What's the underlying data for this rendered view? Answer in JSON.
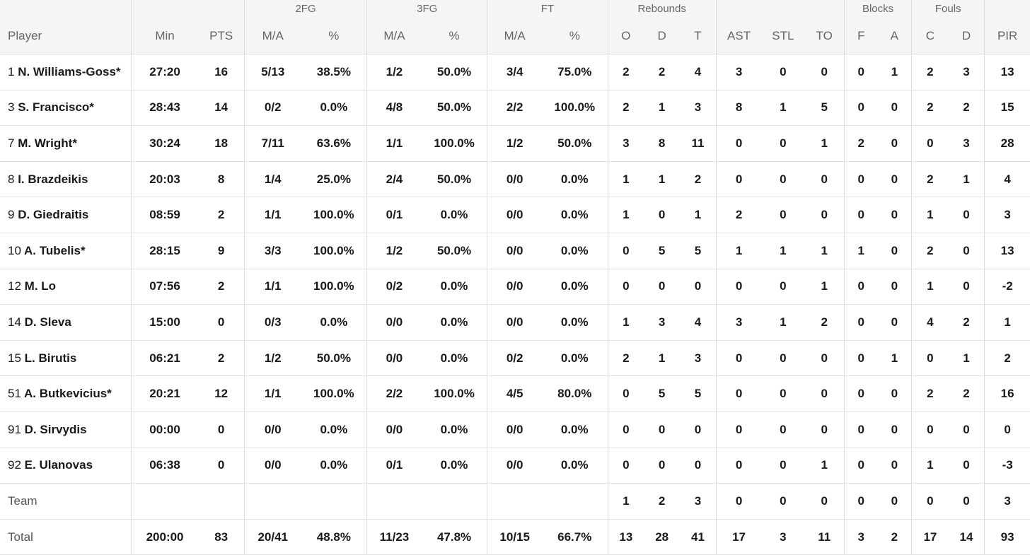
{
  "groups": {
    "fg2": "2FG",
    "fg3": "3FG",
    "ft": "FT",
    "rebounds": "Rebounds",
    "blocks": "Blocks",
    "fouls": "Fouls"
  },
  "columns": {
    "player": "Player",
    "min": "Min",
    "pts": "PTS",
    "fg2_ma": "M/A",
    "fg2_pct": "%",
    "fg3_ma": "M/A",
    "fg3_pct": "%",
    "ft_ma": "M/A",
    "ft_pct": "%",
    "reb_o": "O",
    "reb_d": "D",
    "reb_t": "T",
    "ast": "AST",
    "stl": "STL",
    "to": "TO",
    "blk_f": "F",
    "blk_a": "A",
    "foul_c": "C",
    "foul_d": "D",
    "pir": "PIR"
  },
  "rows": [
    {
      "num": "1",
      "name": "N. Williams-Goss*",
      "min": "27:20",
      "pts": "16",
      "fg2_ma": "5/13",
      "fg2_pct": "38.5%",
      "fg3_ma": "1/2",
      "fg3_pct": "50.0%",
      "ft_ma": "3/4",
      "ft_pct": "75.0%",
      "reb_o": "2",
      "reb_d": "2",
      "reb_t": "4",
      "ast": "3",
      "stl": "0",
      "to": "0",
      "blk_f": "0",
      "blk_a": "1",
      "foul_c": "2",
      "foul_d": "3",
      "pir": "13"
    },
    {
      "num": "3",
      "name": "S. Francisco*",
      "min": "28:43",
      "pts": "14",
      "fg2_ma": "0/2",
      "fg2_pct": "0.0%",
      "fg3_ma": "4/8",
      "fg3_pct": "50.0%",
      "ft_ma": "2/2",
      "ft_pct": "100.0%",
      "reb_o": "2",
      "reb_d": "1",
      "reb_t": "3",
      "ast": "8",
      "stl": "1",
      "to": "5",
      "blk_f": "0",
      "blk_a": "0",
      "foul_c": "2",
      "foul_d": "2",
      "pir": "15"
    },
    {
      "num": "7",
      "name": "M. Wright*",
      "min": "30:24",
      "pts": "18",
      "fg2_ma": "7/11",
      "fg2_pct": "63.6%",
      "fg3_ma": "1/1",
      "fg3_pct": "100.0%",
      "ft_ma": "1/2",
      "ft_pct": "50.0%",
      "reb_o": "3",
      "reb_d": "8",
      "reb_t": "11",
      "ast": "0",
      "stl": "0",
      "to": "1",
      "blk_f": "2",
      "blk_a": "0",
      "foul_c": "0",
      "foul_d": "3",
      "pir": "28"
    },
    {
      "num": "8",
      "name": "I. Brazdeikis",
      "min": "20:03",
      "pts": "8",
      "fg2_ma": "1/4",
      "fg2_pct": "25.0%",
      "fg3_ma": "2/4",
      "fg3_pct": "50.0%",
      "ft_ma": "0/0",
      "ft_pct": "0.0%",
      "reb_o": "1",
      "reb_d": "1",
      "reb_t": "2",
      "ast": "0",
      "stl": "0",
      "to": "0",
      "blk_f": "0",
      "blk_a": "0",
      "foul_c": "2",
      "foul_d": "1",
      "pir": "4"
    },
    {
      "num": "9",
      "name": "D. Giedraitis",
      "min": "08:59",
      "pts": "2",
      "fg2_ma": "1/1",
      "fg2_pct": "100.0%",
      "fg3_ma": "0/1",
      "fg3_pct": "0.0%",
      "ft_ma": "0/0",
      "ft_pct": "0.0%",
      "reb_o": "1",
      "reb_d": "0",
      "reb_t": "1",
      "ast": "2",
      "stl": "0",
      "to": "0",
      "blk_f": "0",
      "blk_a": "0",
      "foul_c": "1",
      "foul_d": "0",
      "pir": "3"
    },
    {
      "num": "10",
      "name": "A. Tubelis*",
      "min": "28:15",
      "pts": "9",
      "fg2_ma": "3/3",
      "fg2_pct": "100.0%",
      "fg3_ma": "1/2",
      "fg3_pct": "50.0%",
      "ft_ma": "0/0",
      "ft_pct": "0.0%",
      "reb_o": "0",
      "reb_d": "5",
      "reb_t": "5",
      "ast": "1",
      "stl": "1",
      "to": "1",
      "blk_f": "1",
      "blk_a": "0",
      "foul_c": "2",
      "foul_d": "0",
      "pir": "13"
    },
    {
      "num": "12",
      "name": "M. Lo",
      "min": "07:56",
      "pts": "2",
      "fg2_ma": "1/1",
      "fg2_pct": "100.0%",
      "fg3_ma": "0/2",
      "fg3_pct": "0.0%",
      "ft_ma": "0/0",
      "ft_pct": "0.0%",
      "reb_o": "0",
      "reb_d": "0",
      "reb_t": "0",
      "ast": "0",
      "stl": "0",
      "to": "1",
      "blk_f": "0",
      "blk_a": "0",
      "foul_c": "1",
      "foul_d": "0",
      "pir": "-2"
    },
    {
      "num": "14",
      "name": "D. Sleva",
      "min": "15:00",
      "pts": "0",
      "fg2_ma": "0/3",
      "fg2_pct": "0.0%",
      "fg3_ma": "0/0",
      "fg3_pct": "0.0%",
      "ft_ma": "0/0",
      "ft_pct": "0.0%",
      "reb_o": "1",
      "reb_d": "3",
      "reb_t": "4",
      "ast": "3",
      "stl": "1",
      "to": "2",
      "blk_f": "0",
      "blk_a": "0",
      "foul_c": "4",
      "foul_d": "2",
      "pir": "1"
    },
    {
      "num": "15",
      "name": "L. Birutis",
      "min": "06:21",
      "pts": "2",
      "fg2_ma": "1/2",
      "fg2_pct": "50.0%",
      "fg3_ma": "0/0",
      "fg3_pct": "0.0%",
      "ft_ma": "0/2",
      "ft_pct": "0.0%",
      "reb_o": "2",
      "reb_d": "1",
      "reb_t": "3",
      "ast": "0",
      "stl": "0",
      "to": "0",
      "blk_f": "0",
      "blk_a": "1",
      "foul_c": "0",
      "foul_d": "1",
      "pir": "2"
    },
    {
      "num": "51",
      "name": "A. Butkevicius*",
      "min": "20:21",
      "pts": "12",
      "fg2_ma": "1/1",
      "fg2_pct": "100.0%",
      "fg3_ma": "2/2",
      "fg3_pct": "100.0%",
      "ft_ma": "4/5",
      "ft_pct": "80.0%",
      "reb_o": "0",
      "reb_d": "5",
      "reb_t": "5",
      "ast": "0",
      "stl": "0",
      "to": "0",
      "blk_f": "0",
      "blk_a": "0",
      "foul_c": "2",
      "foul_d": "2",
      "pir": "16"
    },
    {
      "num": "91",
      "name": "D. Sirvydis",
      "min": "00:00",
      "pts": "0",
      "fg2_ma": "0/0",
      "fg2_pct": "0.0%",
      "fg3_ma": "0/0",
      "fg3_pct": "0.0%",
      "ft_ma": "0/0",
      "ft_pct": "0.0%",
      "reb_o": "0",
      "reb_d": "0",
      "reb_t": "0",
      "ast": "0",
      "stl": "0",
      "to": "0",
      "blk_f": "0",
      "blk_a": "0",
      "foul_c": "0",
      "foul_d": "0",
      "pir": "0"
    },
    {
      "num": "92",
      "name": "E. Ulanovas",
      "min": "06:38",
      "pts": "0",
      "fg2_ma": "0/0",
      "fg2_pct": "0.0%",
      "fg3_ma": "0/1",
      "fg3_pct": "0.0%",
      "ft_ma": "0/0",
      "ft_pct": "0.0%",
      "reb_o": "0",
      "reb_d": "0",
      "reb_t": "0",
      "ast": "0",
      "stl": "0",
      "to": "1",
      "blk_f": "0",
      "blk_a": "0",
      "foul_c": "1",
      "foul_d": "0",
      "pir": "-3"
    }
  ],
  "team": {
    "label": "Team",
    "reb_o": "1",
    "reb_d": "2",
    "reb_t": "3",
    "ast": "0",
    "stl": "0",
    "to": "0",
    "blk_f": "0",
    "blk_a": "0",
    "foul_c": "0",
    "foul_d": "0",
    "pir": "3"
  },
  "total": {
    "label": "Total",
    "min": "200:00",
    "pts": "83",
    "fg2_ma": "20/41",
    "fg2_pct": "48.8%",
    "fg3_ma": "11/23",
    "fg3_pct": "47.8%",
    "ft_ma": "10/15",
    "ft_pct": "66.7%",
    "reb_o": "13",
    "reb_d": "28",
    "reb_t": "41",
    "ast": "17",
    "stl": "3",
    "to": "11",
    "blk_f": "3",
    "blk_a": "2",
    "foul_c": "17",
    "foul_d": "14",
    "pir": "93"
  }
}
